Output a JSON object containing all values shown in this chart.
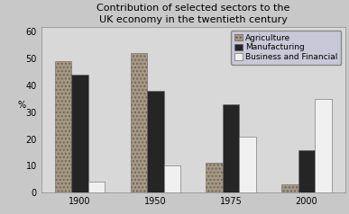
{
  "title": "Contribution of selected sectors to the\nUK economy in the twentieth century",
  "years": [
    "1900",
    "1950",
    "1975",
    "2000"
  ],
  "agriculture": [
    49,
    52,
    11,
    3
  ],
  "manufacturing": [
    44,
    38,
    33,
    16
  ],
  "business": [
    4,
    10,
    21,
    35
  ],
  "agri_color": "#a89880",
  "manu_color": "#252525",
  "busi_color": "#f0f0f0",
  "ylabel": "%",
  "ylim": [
    0,
    62
  ],
  "yticks": [
    0,
    10,
    20,
    30,
    40,
    50,
    60
  ],
  "legend_labels": [
    "Agriculture",
    "Manufacturing",
    "Business and Financial"
  ],
  "bg_color": "#c8c8c8",
  "plot_bg": "#d8d8d8",
  "legend_bg": "#c8c8d8",
  "title_fontsize": 8,
  "tick_fontsize": 7,
  "legend_fontsize": 6.5,
  "bar_width": 0.22,
  "bar_gap": 0.25
}
